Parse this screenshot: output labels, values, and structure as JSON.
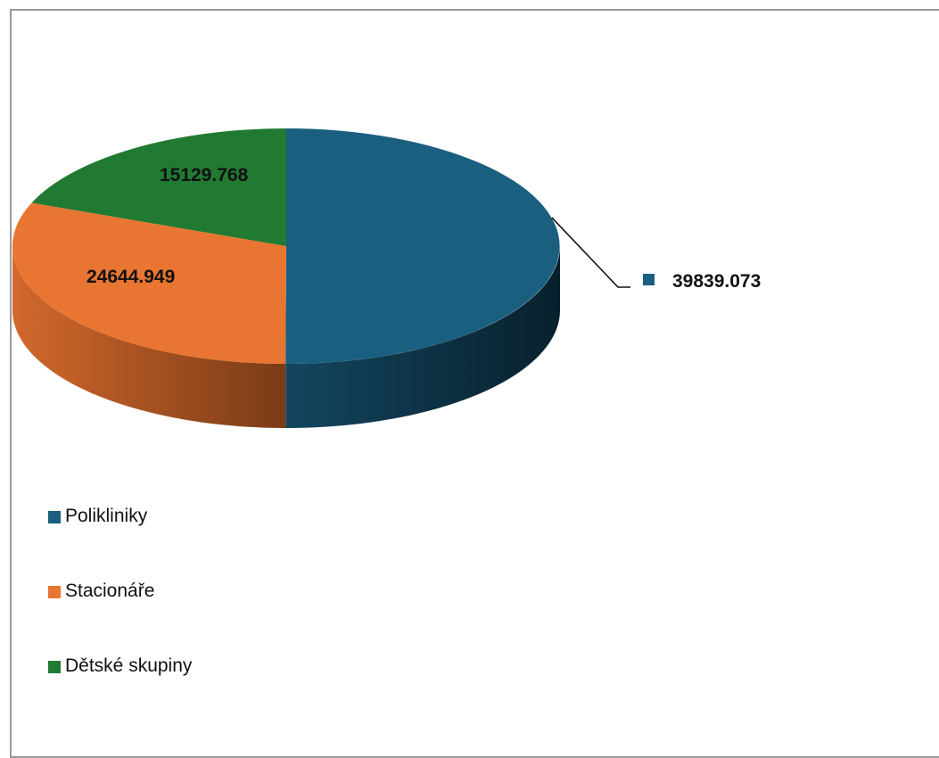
{
  "chart_data": {
    "type": "pie",
    "style": "3d",
    "title": "",
    "series": [
      {
        "name": "Polikliniky",
        "value": 39839.073,
        "label": "39839.073",
        "color": "#1a5f80"
      },
      {
        "name": "Stacionáře",
        "value": 24644.949,
        "label": "24644.949",
        "color": "#e97532"
      },
      {
        "name": "Dětské skupiny",
        "value": 15129.768,
        "label": "15129.768",
        "color": "#217a32"
      }
    ],
    "legend_position": "bottom-left"
  }
}
